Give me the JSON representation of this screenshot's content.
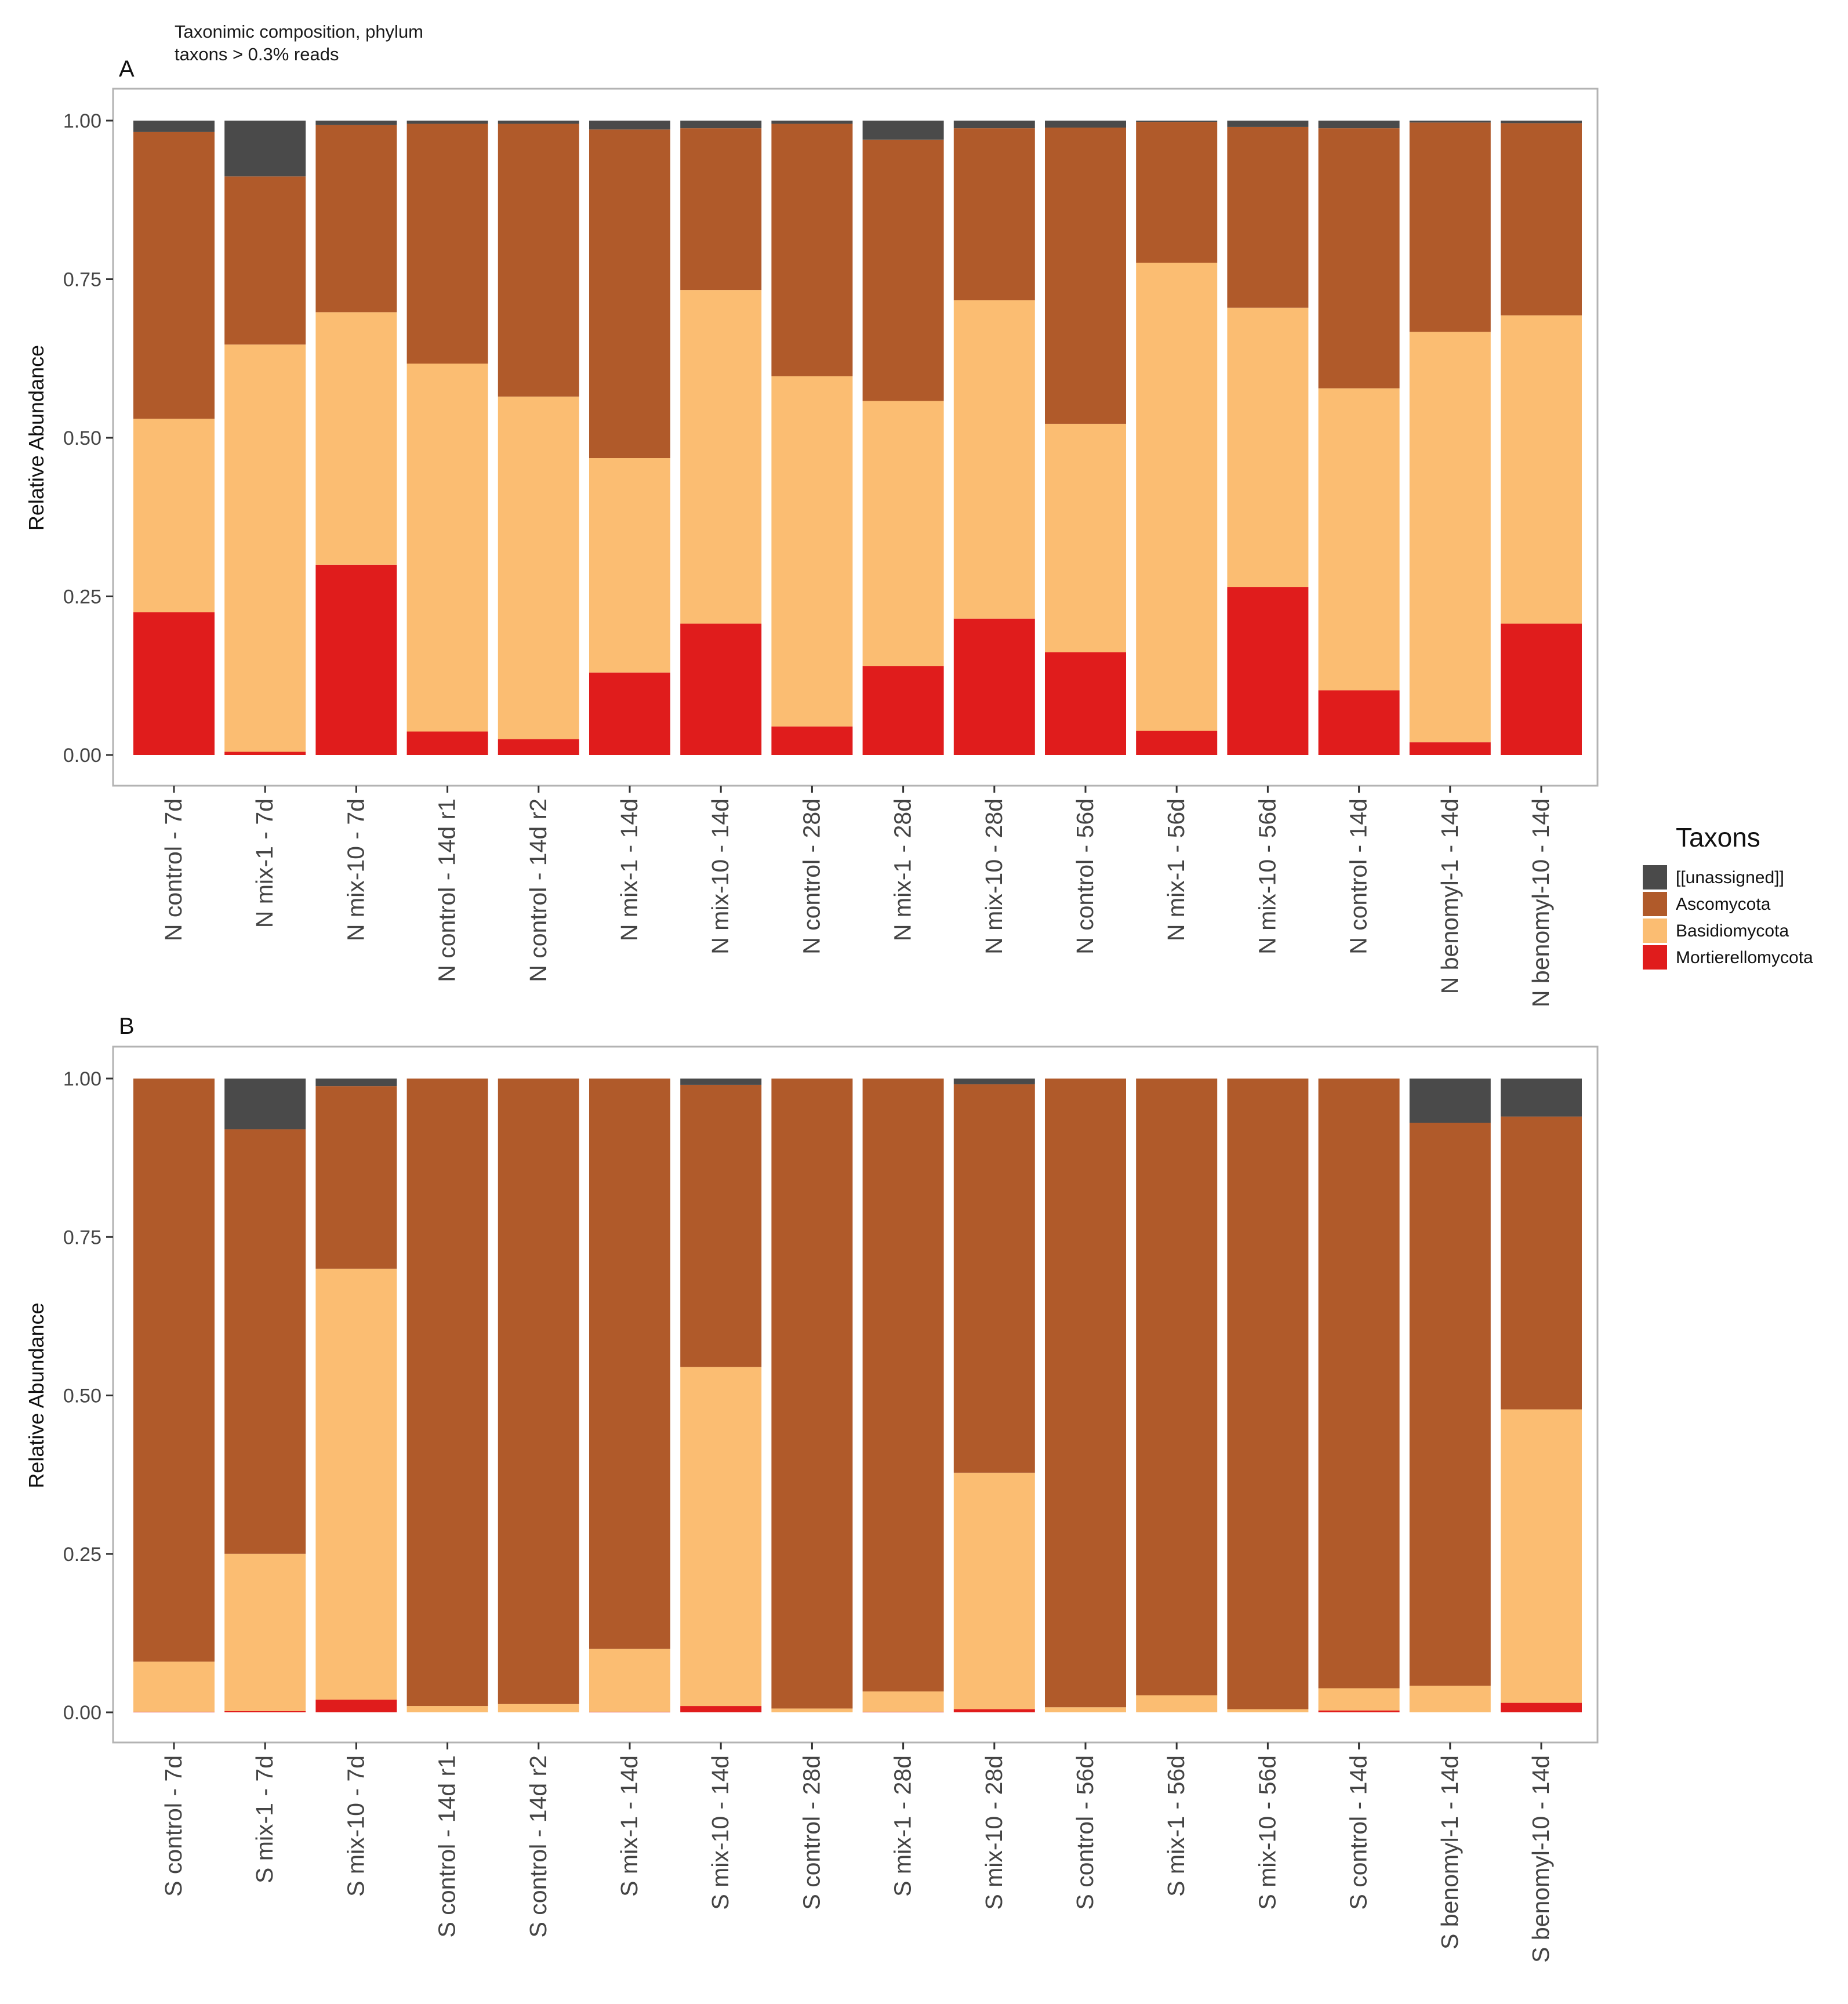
{
  "figure": {
    "header": {
      "line1": "Taxonimic composition, phylum",
      "line2": "taxons > 0.3% reads"
    },
    "legend": {
      "title": "Taxons",
      "items": [
        {
          "label": "[[unassigned]]",
          "color": "#4a4a4a"
        },
        {
          "label": "Ascomycota",
          "color": "#b05a2a"
        },
        {
          "label": "Basidiomycota",
          "color": "#fbbd72"
        },
        {
          "label": "Mortierellomycota",
          "color": "#e01c1c"
        }
      ]
    }
  },
  "chart_data": [
    {
      "type": "bar",
      "stacked": true,
      "panel_label": "A",
      "ylabel": "Relative Abundance",
      "xlabel": "",
      "ylim": [
        0,
        1
      ],
      "yticks": [
        "0.00",
        "0.25",
        "0.50",
        "0.75",
        "1.00"
      ],
      "grid": false,
      "categories": [
        "N control - 7d",
        "N mix-1 - 7d",
        "N mix-10 - 7d",
        "N control - 14d r1",
        "N control - 14d r2",
        "N mix-1 - 14d",
        "N mix-10 - 14d",
        "N control - 28d",
        "N mix-1 - 28d",
        "N mix-10 - 28d",
        "N control - 56d",
        "N mix-1 - 56d",
        "N mix-10 - 56d",
        "N control - 14d",
        "N benomyl-1 - 14d",
        "N benomyl-10 - 14d"
      ],
      "series": [
        {
          "name": "Mortierellomycota",
          "values": [
            0.225,
            0.005,
            0.3,
            0.037,
            0.025,
            0.13,
            0.207,
            0.045,
            0.14,
            0.215,
            0.162,
            0.038,
            0.265,
            0.102,
            0.02,
            0.207
          ]
        },
        {
          "name": "Basidiomycota",
          "values": [
            0.305,
            0.642,
            0.398,
            0.58,
            0.54,
            0.338,
            0.526,
            0.552,
            0.418,
            0.502,
            0.36,
            0.738,
            0.44,
            0.476,
            0.647,
            0.486
          ]
        },
        {
          "name": "Ascomycota",
          "values": [
            0.452,
            0.265,
            0.295,
            0.378,
            0.43,
            0.518,
            0.255,
            0.398,
            0.412,
            0.271,
            0.467,
            0.222,
            0.285,
            0.41,
            0.33,
            0.303
          ]
        },
        {
          "name": "[[unassigned]]",
          "values": [
            0.018,
            0.088,
            0.007,
            0.005,
            0.005,
            0.014,
            0.012,
            0.005,
            0.03,
            0.012,
            0.011,
            0.002,
            0.01,
            0.012,
            0.003,
            0.004
          ]
        }
      ]
    },
    {
      "type": "bar",
      "stacked": true,
      "panel_label": "B",
      "ylabel": "Relative Abundance",
      "xlabel": "",
      "ylim": [
        0,
        1
      ],
      "yticks": [
        "0.00",
        "0.25",
        "0.50",
        "0.75",
        "1.00"
      ],
      "grid": false,
      "categories": [
        "S control - 7d",
        "S mix-1 - 7d",
        "S mix-10 - 7d",
        "S control - 14d r1",
        "S control - 14d r2",
        "S mix-1 - 14d",
        "S mix-10 - 14d",
        "S control - 28d",
        "S mix-1 - 28d",
        "S mix-10 - 28d",
        "S control - 56d",
        "S mix-1 - 56d",
        "S mix-10 - 56d",
        "S control - 14d",
        "S benomyl-1 - 14d",
        "S benomyl-10 - 14d"
      ],
      "series": [
        {
          "name": "Mortierellomycota",
          "values": [
            0.001,
            0.002,
            0.02,
            0.0,
            0.0,
            0.001,
            0.01,
            0.0,
            0.001,
            0.005,
            0.0,
            0.0,
            0.0,
            0.003,
            0.0,
            0.015
          ]
        },
        {
          "name": "Basidiomycota",
          "values": [
            0.079,
            0.248,
            0.68,
            0.01,
            0.013,
            0.099,
            0.535,
            0.006,
            0.032,
            0.373,
            0.008,
            0.027,
            0.005,
            0.035,
            0.042,
            0.463
          ]
        },
        {
          "name": "Ascomycota",
          "values": [
            0.92,
            0.67,
            0.288,
            0.99,
            0.987,
            0.9,
            0.445,
            0.994,
            0.967,
            0.613,
            0.992,
            0.973,
            0.995,
            0.962,
            0.888,
            0.462
          ]
        },
        {
          "name": "[[unassigned]]",
          "values": [
            0.0,
            0.08,
            0.012,
            0.0,
            0.0,
            0.0,
            0.01,
            0.0,
            0.0,
            0.009,
            0.0,
            0.0,
            0.0,
            0.0,
            0.07,
            0.06
          ]
        }
      ]
    }
  ]
}
